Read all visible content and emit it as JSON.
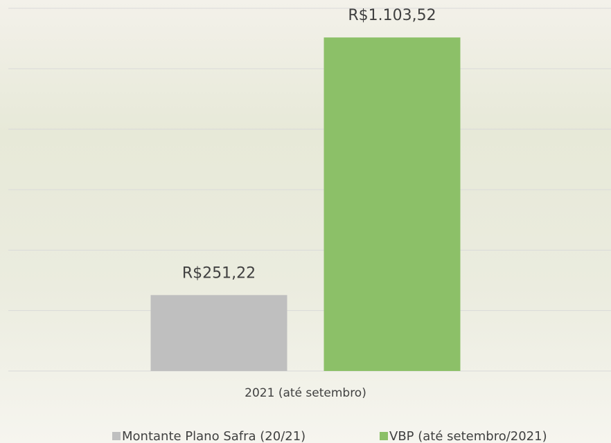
{
  "chart_data": {
    "type": "bar",
    "categories": [
      "2021 (até setembro)"
    ],
    "series": [
      {
        "name": "Montante Plano Safra (20/21)",
        "color": "#bfbfbf",
        "values": [
          251.22
        ],
        "value_labels": [
          "R$251,22"
        ]
      },
      {
        "name": "VBP (até setembro/2021)",
        "color": "#8cc068",
        "values": [
          1103.52
        ],
        "value_labels": [
          "R$1.103,52"
        ]
      }
    ],
    "ylim": [
      0,
      1200
    ],
    "yticks": [
      0,
      200,
      400,
      600,
      800,
      1000,
      1200
    ],
    "grid": true,
    "legend": "bottom"
  }
}
